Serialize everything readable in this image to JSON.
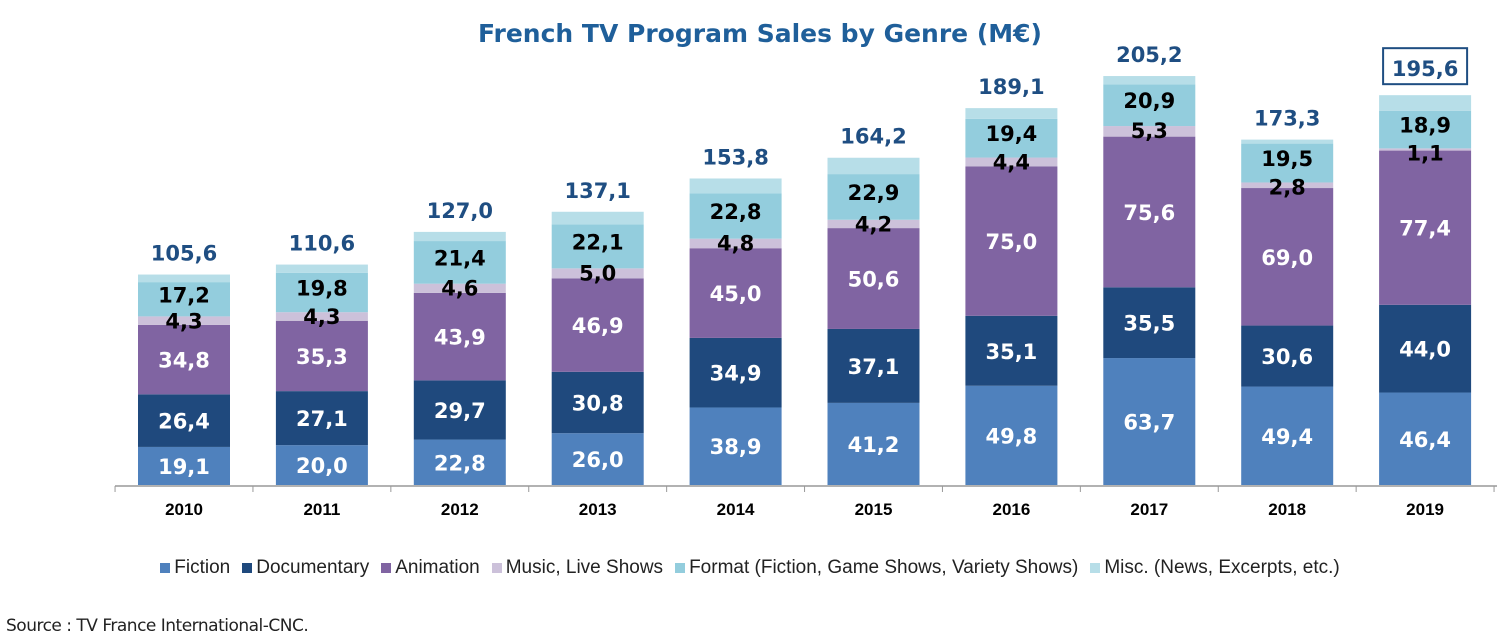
{
  "chart_data": {
    "type": "bar",
    "stacked": true,
    "title": "French TV Program Sales by Genre (M€)",
    "xlabel": "",
    "ylabel": "",
    "ylim": [
      0,
      210
    ],
    "grid": false,
    "legend_position": "bottom",
    "categories": [
      "2010",
      "2011",
      "2012",
      "2013",
      "2014",
      "2015",
      "2016",
      "2017",
      "2018",
      "2019"
    ],
    "series": [
      {
        "name": "Fiction",
        "color": "#4f81bd",
        "label_color": "#ffffff",
        "values": [
          19.1,
          20.0,
          22.8,
          26.0,
          38.9,
          41.2,
          49.8,
          63.7,
          49.4,
          46.4
        ],
        "labels": [
          "19,1",
          "20,0",
          "22,8",
          "26,0",
          "38,9",
          "41,2",
          "49,8",
          "63,7",
          "49,4",
          "46,4"
        ]
      },
      {
        "name": "Documentary",
        "color": "#1f497d",
        "label_color": "#ffffff",
        "values": [
          26.4,
          27.1,
          29.7,
          30.8,
          34.9,
          37.1,
          35.1,
          35.5,
          30.6,
          44.0
        ],
        "labels": [
          "26,4",
          "27,1",
          "29,7",
          "30,8",
          "34,9",
          "37,1",
          "35,1",
          "35,5",
          "30,6",
          "44,0"
        ]
      },
      {
        "name": "Animation",
        "color": "#8064a2",
        "label_color": "#ffffff",
        "values": [
          34.8,
          35.3,
          43.9,
          46.9,
          45.0,
          50.6,
          75.0,
          75.6,
          69.0,
          77.4
        ],
        "labels": [
          "34,8",
          "35,3",
          "43,9",
          "46,9",
          "45,0",
          "50,6",
          "75,0",
          "75,6",
          "69,0",
          "77,4"
        ]
      },
      {
        "name": "Music, Live Shows",
        "color": "#ccc1da",
        "label_color": "#000000",
        "values": [
          4.3,
          4.3,
          4.6,
          5.0,
          4.8,
          4.2,
          4.4,
          5.3,
          2.8,
          1.1
        ],
        "labels": [
          "4,3",
          "4,3",
          "4,6",
          "5,0",
          "4,8",
          "4,2",
          "4,4",
          "5,3",
          "2,8",
          "1,1"
        ]
      },
      {
        "name": "Format (Fiction, Game Shows, Variety Shows)",
        "color": "#93cddd",
        "label_color": "#000000",
        "values": [
          17.2,
          19.8,
          21.4,
          22.1,
          22.8,
          22.9,
          19.4,
          20.9,
          19.5,
          18.9
        ],
        "labels": [
          "17,2",
          "19,8",
          "21,4",
          "22,1",
          "22,8",
          "22,9",
          "19,4",
          "20,9",
          "19,5",
          "18,9"
        ]
      },
      {
        "name": "Misc. (News, Excerpts, etc.)",
        "color": "#b7dee8",
        "label_color": "#000000",
        "values": [
          3.8,
          4.1,
          4.6,
          6.3,
          7.4,
          8.2,
          5.4,
          4.2,
          2.0,
          7.8
        ],
        "labels": []
      }
    ],
    "totals": [
      105.6,
      110.6,
      127.0,
      137.1,
      153.8,
      164.2,
      189.1,
      205.2,
      173.3,
      195.6
    ],
    "total_labels": [
      "105,6",
      "110,6",
      "127,0",
      "137,1",
      "153,8",
      "164,2",
      "189,1",
      "205,2",
      "173,3",
      "195,6"
    ],
    "highlighted_total_index": 9,
    "source": "Source : TV France International-CNC."
  }
}
